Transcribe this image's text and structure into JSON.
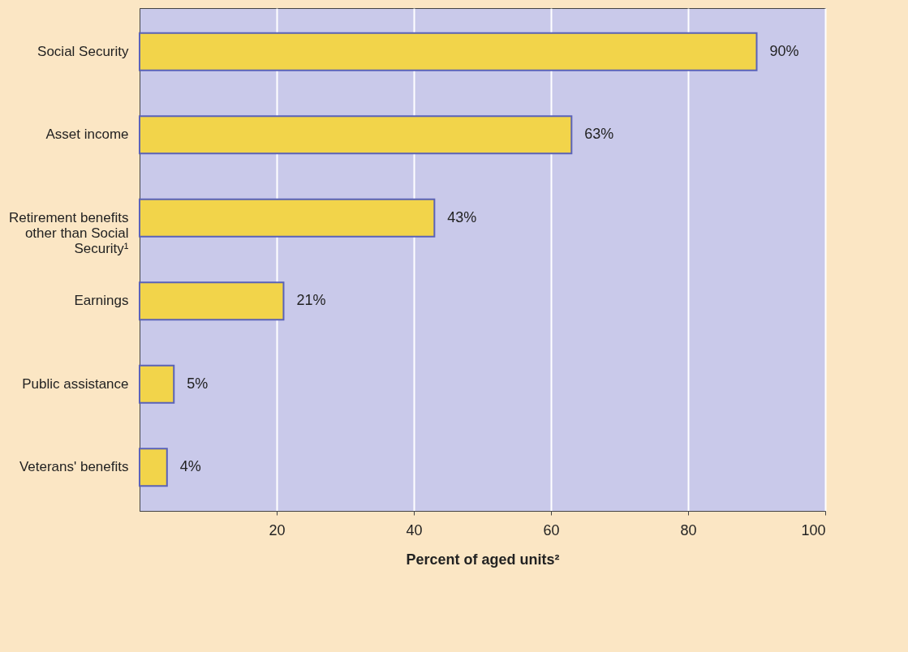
{
  "chart_data": {
    "type": "bar",
    "orientation": "horizontal",
    "xlabel": "Percent of aged units²",
    "categories": [
      "Social Security",
      "Asset income",
      "Retirement benefits other than Social Security¹",
      "Earnings",
      "Public assistance",
      "Veterans' benefits"
    ],
    "values": [
      90,
      63,
      43,
      21,
      5,
      4
    ],
    "value_labels": [
      "90%",
      "63%",
      "43%",
      "21%",
      "5%",
      "4%"
    ],
    "color": "#f2d44a",
    "xlim": [
      0,
      100
    ],
    "xticks": [
      20,
      40,
      60,
      80,
      100
    ],
    "grid": "x"
  }
}
